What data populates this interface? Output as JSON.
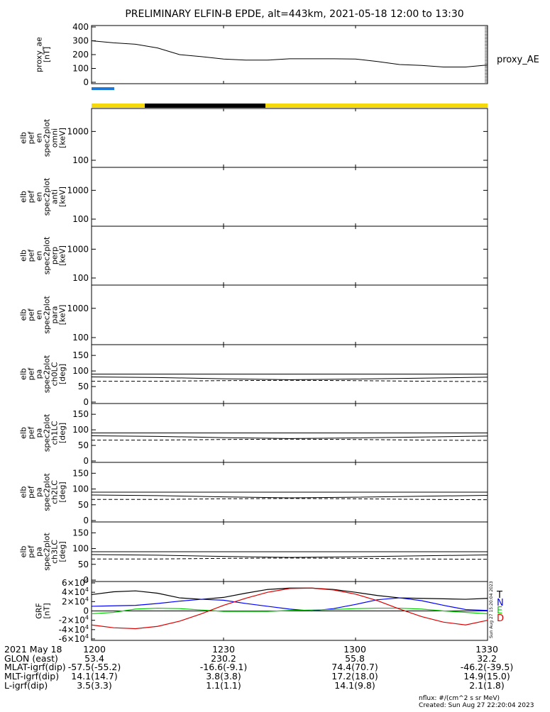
{
  "title": "PRELIMINARY ELFIN-B EPDE, alt=443km, 2021-05-18 12:00 to 13:30",
  "created_stamp_vertical": "Sun Aug 27 15:20:04 2023",
  "footer": {
    "nflux": "nflux: #/(cm^2 s sr MeV)",
    "created": "Created: Sun Aug 27 22:20:04 2023"
  },
  "bottom_table": {
    "row_labels": [
      "2021 May 18",
      "GLON (east)",
      "MLAT-igrf(dip)",
      "MLT-igrf(dip)",
      "L-igrf(dip)"
    ],
    "columns": [
      {
        "time": "1200",
        "GLON": "53.4",
        "MLAT": "-57.5(-55.2)",
        "MLT": "14.1(14.7)",
        "L": "3.5(3.3)"
      },
      {
        "time": "1230",
        "GLON": "230.2",
        "MLAT": "-16.6(-9.1)",
        "MLT": "3.8(3.8)",
        "L": "1.1(1.1)"
      },
      {
        "time": "1300",
        "GLON": "55.8",
        "MLAT": "74.4(70.7)",
        "MLT": "17.2(18.0)",
        "L": "14.1(9.8)"
      },
      {
        "time": "1330",
        "GLON": "32.2",
        "MLAT": "-46.2(-39.5)",
        "MLT": "14.9(15.0)",
        "L": "2.1(1.8)"
      }
    ]
  },
  "chart_data": [
    {
      "type": "line",
      "panel": "proxy_ae",
      "ylabel": [
        "proxy_ae",
        "[nT]"
      ],
      "side_label": "proxy_AE",
      "ylim": [
        0,
        400
      ],
      "yticks": [
        "0",
        "100",
        "200",
        "300",
        "400"
      ],
      "x": [
        0,
        5,
        10,
        15,
        20,
        25,
        30,
        35,
        40,
        45,
        50,
        55,
        60,
        65,
        70,
        75,
        80,
        85,
        90
      ],
      "values": [
        300,
        285,
        275,
        248,
        200,
        185,
        168,
        160,
        160,
        170,
        170,
        170,
        168,
        150,
        128,
        122,
        110,
        110,
        125
      ]
    },
    {
      "type": "heatmap",
      "panel": "elb_pef_en_spec2plot_omni",
      "ylabel": [
        "elb",
        "pef",
        "en",
        "spec2plot",
        "omni",
        "[keV]"
      ],
      "scale": "log",
      "yticks": [
        "100",
        "1000"
      ]
    },
    {
      "type": "heatmap",
      "panel": "elb_pef_en_spec2plot_anti",
      "ylabel": [
        "elb",
        "pef",
        "en",
        "spec2plot",
        "anti",
        "[keV]"
      ],
      "scale": "log",
      "yticks": [
        "100",
        "1000"
      ]
    },
    {
      "type": "heatmap",
      "panel": "elb_pef_en_spec2plot_perp",
      "ylabel": [
        "elb",
        "pef",
        "en",
        "spec2plot",
        "perp",
        "[keV]"
      ],
      "scale": "log",
      "yticks": [
        "100",
        "1000"
      ]
    },
    {
      "type": "heatmap",
      "panel": "elb_pef_en_spec2plot_para",
      "ylabel": [
        "elb",
        "pef",
        "en",
        "spec2plot",
        "para",
        "[keV]"
      ],
      "scale": "log",
      "yticks": [
        "100",
        "1000"
      ]
    },
    {
      "type": "line",
      "panel": "elb_pef_pa_spec2plot_ch0LC",
      "ylabel": [
        "elb",
        "pef",
        "pa",
        "spec2plot",
        "ch0LC",
        "[deg]"
      ],
      "ylim": [
        0,
        180
      ],
      "yticks": [
        "0",
        "50",
        "100",
        "150"
      ],
      "reference_line": 90,
      "x": [
        0,
        15,
        30,
        45,
        60,
        75,
        90
      ],
      "solid": [
        81,
        79,
        75,
        72,
        74,
        77,
        80
      ],
      "dashed": [
        67,
        67,
        69,
        70,
        69,
        67,
        66
      ]
    },
    {
      "type": "line",
      "panel": "elb_pef_pa_spec2plot_ch1LC",
      "ylabel": [
        "elb",
        "pef",
        "pa",
        "spec2plot",
        "ch1LC",
        "[deg]"
      ],
      "ylim": [
        0,
        180
      ],
      "yticks": [
        "0",
        "50",
        "100",
        "150"
      ],
      "reference_line": 90,
      "x": [
        0,
        15,
        30,
        45,
        60,
        75,
        90
      ],
      "solid": [
        81,
        79,
        75,
        72,
        74,
        77,
        80
      ],
      "dashed": [
        67,
        67,
        69,
        70,
        69,
        67,
        66
      ]
    },
    {
      "type": "line",
      "panel": "elb_pef_pa_spec2plot_ch2LC",
      "ylabel": [
        "elb",
        "pef",
        "pa",
        "spec2plot",
        "ch2LC",
        "[deg]"
      ],
      "ylim": [
        0,
        180
      ],
      "yticks": [
        "0",
        "50",
        "100",
        "150"
      ],
      "reference_line": 90,
      "x": [
        0,
        15,
        30,
        45,
        60,
        75,
        90
      ],
      "solid": [
        81,
        79,
        75,
        72,
        74,
        77,
        80
      ],
      "dashed": [
        67,
        67,
        69,
        70,
        69,
        67,
        66
      ]
    },
    {
      "type": "line",
      "panel": "elb_pef_pa_spec2plot_ch3LC",
      "ylabel": [
        "elb",
        "pef",
        "pa",
        "spec2plot",
        "ch3LC",
        "[deg]"
      ],
      "ylim": [
        0,
        180
      ],
      "yticks": [
        "0",
        "50",
        "100",
        "150"
      ],
      "reference_line": 90,
      "x": [
        0,
        15,
        30,
        45,
        60,
        75,
        90
      ],
      "solid": [
        81,
        79,
        75,
        72,
        74,
        77,
        80
      ],
      "dashed": [
        67,
        67,
        69,
        70,
        69,
        67,
        66
      ]
    },
    {
      "type": "line",
      "panel": "GRF",
      "ylabel": [
        "GRF",
        "[nT]"
      ],
      "ylim": [
        -60000,
        60000
      ],
      "yticks": [
        {
          "base": "-6×10",
          "exp": "4",
          "v": -60000
        },
        {
          "base": "-4×10",
          "exp": "4",
          "v": -40000
        },
        {
          "base": "-2×10",
          "exp": "4",
          "v": -20000
        },
        {
          "base": "0",
          "exp": "",
          "v": 0
        },
        {
          "base": "2×10",
          "exp": "4",
          "v": 20000
        },
        {
          "base": "4×10",
          "exp": "4",
          "v": 40000
        },
        {
          "base": "6×10",
          "exp": "4",
          "v": 60000
        }
      ],
      "x": [
        0,
        5,
        10,
        15,
        20,
        25,
        30,
        35,
        40,
        45,
        50,
        55,
        60,
        65,
        70,
        75,
        80,
        85,
        90
      ],
      "series": [
        {
          "name": "T",
          "color": "#000000",
          "values": [
            35000,
            41000,
            43000,
            38000,
            28000,
            25000,
            29000,
            38000,
            46000,
            49000,
            49000,
            46000,
            40000,
            33000,
            28000,
            27000,
            26000,
            25000,
            27000
          ]
        },
        {
          "name": "N",
          "color": "#0000ff",
          "values": [
            10000,
            11000,
            12000,
            16000,
            21000,
            25000,
            23000,
            16000,
            10000,
            4000,
            0,
            5000,
            14000,
            24000,
            28000,
            22000,
            12000,
            3000,
            1000
          ]
        },
        {
          "name": "E",
          "color": "#00cc00",
          "values": [
            -6000,
            -3000,
            4000,
            6000,
            5000,
            2000,
            -1000,
            -1000,
            -1000,
            1000,
            2000,
            3000,
            5000,
            6000,
            6000,
            4000,
            0,
            -3000,
            -6000
          ]
        },
        {
          "name": "D",
          "color": "#dd0000",
          "values": [
            -30000,
            -36000,
            -38000,
            -33000,
            -22000,
            -6000,
            12000,
            27000,
            40000,
            48000,
            49000,
            45000,
            36000,
            22000,
            4000,
            -12000,
            -24000,
            -30000,
            -20000
          ]
        }
      ]
    }
  ]
}
